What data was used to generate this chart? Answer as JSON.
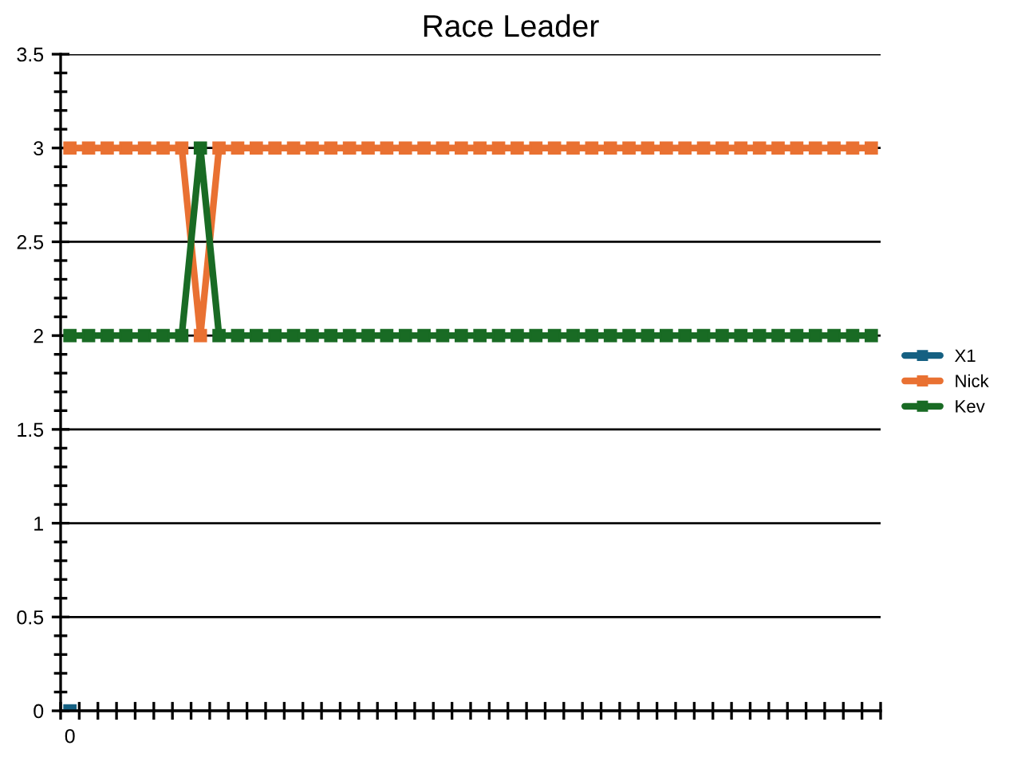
{
  "chart_data": {
    "type": "line",
    "title": "Race Leader",
    "categories": [
      "0",
      null,
      null,
      null,
      null,
      null,
      null,
      null,
      null,
      null,
      null,
      null,
      null,
      null,
      null,
      null,
      null,
      null,
      null,
      null,
      null,
      null,
      null,
      null,
      null,
      null,
      null,
      null,
      null,
      null,
      null,
      null,
      null,
      null,
      null,
      null,
      null,
      null,
      null,
      null,
      null,
      null,
      null,
      null
    ],
    "series": [
      {
        "name": "X1",
        "color": "#156082",
        "values": [
          0,
          null,
          null,
          null,
          null,
          null,
          null,
          null,
          null,
          null,
          null,
          null,
          null,
          null,
          null,
          null,
          null,
          null,
          null,
          null,
          null,
          null,
          null,
          null,
          null,
          null,
          null,
          null,
          null,
          null,
          null,
          null,
          null,
          null,
          null,
          null,
          null,
          null,
          null,
          null,
          null,
          null,
          null,
          null
        ]
      },
      {
        "name": "Nick",
        "color": "#e97132",
        "values": [
          3,
          3,
          3,
          3,
          3,
          3,
          3,
          2,
          3,
          3,
          3,
          3,
          3,
          3,
          3,
          3,
          3,
          3,
          3,
          3,
          3,
          3,
          3,
          3,
          3,
          3,
          3,
          3,
          3,
          3,
          3,
          3,
          3,
          3,
          3,
          3,
          3,
          3,
          3,
          3,
          3,
          3,
          3,
          3
        ]
      },
      {
        "name": "Kev",
        "color": "#196b24",
        "values": [
          2,
          2,
          2,
          2,
          2,
          2,
          2,
          3,
          2,
          2,
          2,
          2,
          2,
          2,
          2,
          2,
          2,
          2,
          2,
          2,
          2,
          2,
          2,
          2,
          2,
          2,
          2,
          2,
          2,
          2,
          2,
          2,
          2,
          2,
          2,
          2,
          2,
          2,
          2,
          2,
          2,
          2,
          2,
          2
        ]
      }
    ],
    "ylim": [
      0,
      3.5
    ],
    "yticks": [
      0,
      0.5,
      1,
      1.5,
      2,
      2.5,
      3,
      3.5
    ],
    "grid": "y",
    "legend": "right",
    "marker": "square",
    "line_style": "solid"
  }
}
